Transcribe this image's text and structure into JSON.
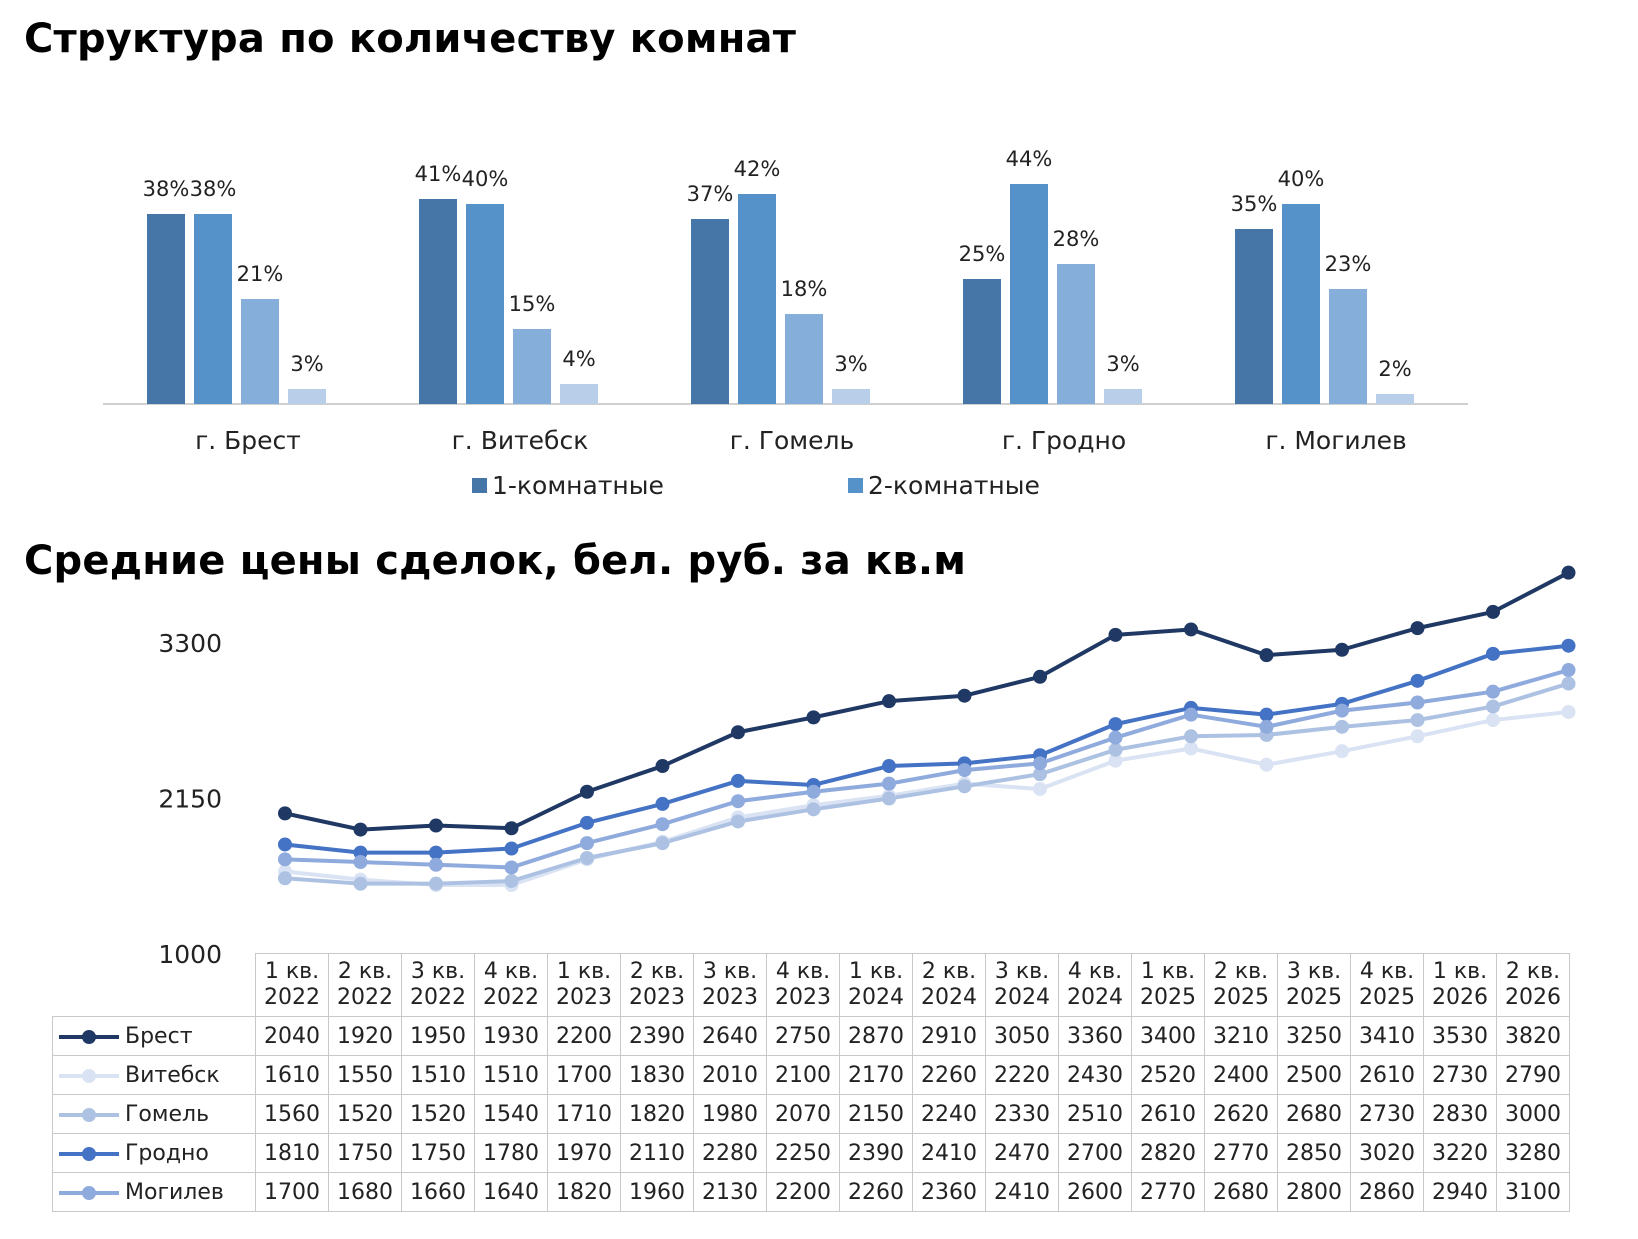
{
  "bar_title": "Структура по количеству комнат",
  "line_title": "Средние цены сделок, бел. руб. за кв.м",
  "colors": {
    "bar_series": [
      "#4676a8",
      "#5592c9",
      "#86aedb",
      "#b9cfe9"
    ],
    "line_series": [
      "#1f3864",
      "#dae3f3",
      "#adc2e2",
      "#4472c4",
      "#8faadc"
    ]
  },
  "chart_data": [
    {
      "type": "bar",
      "title": "Структура по количеству комнат",
      "categories": [
        "г. Брест",
        "г. Витебск",
        "г. Гомель",
        "г. Гродно",
        "г. Могилев"
      ],
      "ylim": [
        0,
        48
      ],
      "legend_position": "bottom",
      "series": [
        {
          "name": "1-комнатные",
          "values": [
            38,
            41,
            37,
            25,
            35
          ]
        },
        {
          "values": [
            38,
            40,
            42,
            44,
            40
          ],
          "name": "2-комнатные"
        },
        {
          "values": [
            21,
            15,
            18,
            28,
            23
          ]
        },
        {
          "values": [
            3,
            4,
            3,
            3,
            2
          ]
        }
      ],
      "data_labels": [
        [
          "38%",
          "41%",
          "37%",
          "25%",
          "35%"
        ],
        [
          "38%",
          "40%",
          "42%",
          "44%",
          "40%"
        ],
        [
          "21%",
          "15%",
          "18%",
          "28%",
          "23%"
        ],
        [
          "3%",
          "4%",
          "3%",
          "3%",
          "2%"
        ]
      ]
    },
    {
      "type": "line",
      "title": "Средние цены сделок, бел. руб. за кв.м",
      "x": [
        "1 кв. 2022",
        "2 кв. 2022",
        "3 кв. 2022",
        "4 кв. 2022",
        "1 кв. 2023",
        "2 кв. 2023",
        "3 кв. 2023",
        "4 кв. 2023",
        "1 кв. 2024",
        "2 кв. 2024",
        "3 кв. 2024",
        "4 кв. 2024",
        "1 кв. 2025",
        "2 кв. 2025",
        "3 кв. 2025",
        "4 кв. 2025",
        "1 кв. 2026",
        "2 кв. 2026"
      ],
      "x_lines": [
        [
          "1 кв.",
          "2022"
        ],
        [
          "2 кв.",
          "2022"
        ],
        [
          "3 кв.",
          "2022"
        ],
        [
          "4 кв.",
          "2022"
        ],
        [
          "1 кв.",
          "2023"
        ],
        [
          "2 кв.",
          "2023"
        ],
        [
          "3 кв.",
          "2023"
        ],
        [
          "4 кв.",
          "2023"
        ],
        [
          "1 кв.",
          "2024"
        ],
        [
          "2 кв.",
          "2024"
        ],
        [
          "3 кв.",
          "2024"
        ],
        [
          "4 кв.",
          "2024"
        ],
        [
          "1 кв.",
          "2025"
        ],
        [
          "2 кв.",
          "2025"
        ],
        [
          "3 кв.",
          "2025"
        ],
        [
          "4 кв.",
          "2025"
        ],
        [
          "1 кв.",
          "2026"
        ],
        [
          "2 кв.",
          "2026"
        ]
      ],
      "yticks": [
        1000,
        2150,
        3300
      ],
      "ylim": [
        1000,
        3300
      ],
      "series": [
        {
          "name": "Брест",
          "values": [
            2040,
            1920,
            1950,
            1930,
            2200,
            2390,
            2640,
            2750,
            2870,
            2910,
            3050,
            3360,
            3400,
            3210,
            3250,
            3410,
            3530,
            3820
          ]
        },
        {
          "name": "Витебск",
          "values": [
            1610,
            1550,
            1510,
            1510,
            1700,
            1830,
            2010,
            2100,
            2170,
            2260,
            2220,
            2430,
            2520,
            2400,
            2500,
            2610,
            2730,
            2790
          ]
        },
        {
          "name": "Гомель",
          "values": [
            1560,
            1520,
            1520,
            1540,
            1710,
            1820,
            1980,
            2070,
            2150,
            2240,
            2330,
            2510,
            2610,
            2620,
            2680,
            2730,
            2830,
            3000
          ]
        },
        {
          "name": "Гродно",
          "values": [
            1810,
            1750,
            1750,
            1780,
            1970,
            2110,
            2280,
            2250,
            2390,
            2410,
            2470,
            2700,
            2820,
            2770,
            2850,
            3020,
            3220,
            3280
          ]
        },
        {
          "name": "Могилев",
          "values": [
            1700,
            1680,
            1660,
            1640,
            1820,
            1960,
            2130,
            2200,
            2260,
            2360,
            2410,
            2600,
            2770,
            2680,
            2800,
            2860,
            2940,
            3100
          ]
        }
      ]
    }
  ]
}
